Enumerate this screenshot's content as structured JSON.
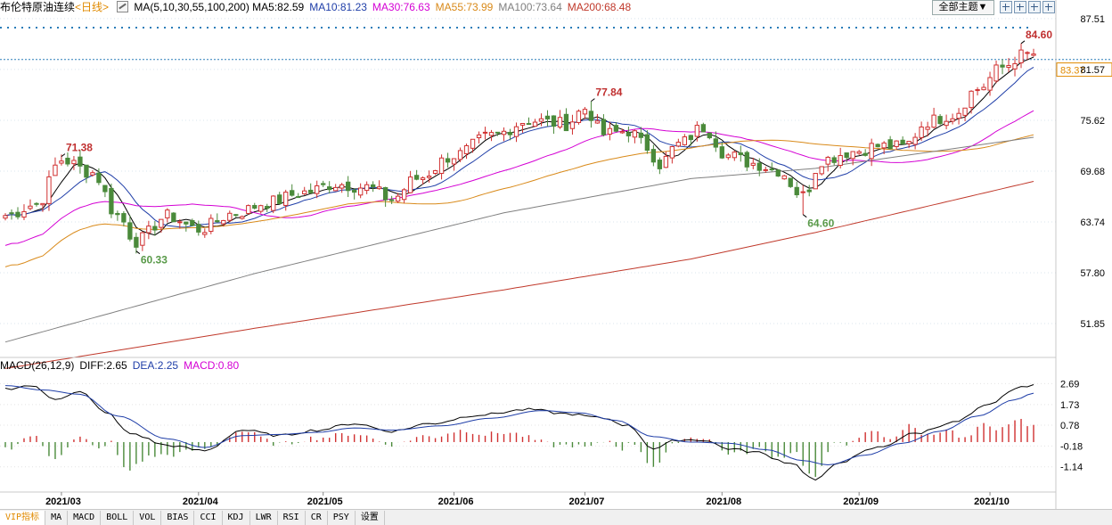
{
  "header": {
    "instrument": "布伦特原油连续",
    "period": "<日线>",
    "indicator": "MA(5,10,30,55,100,200)",
    "ma_values": [
      {
        "label": "MA5:82.59",
        "color": "#000000"
      },
      {
        "label": "MA10:81.23",
        "color": "#1f3ea8"
      },
      {
        "label": "MA30:76.63",
        "color": "#d400d4"
      },
      {
        "label": "MA55:73.99",
        "color": "#d98a1a"
      },
      {
        "label": "MA100:73.64",
        "color": "#808080"
      },
      {
        "label": "MA200:68.48",
        "color": "#c0392b"
      }
    ],
    "theme_button": "全部主题▼",
    "tool_icons": [
      "zoom-in-icon",
      "zoom-out-icon",
      "left-arrow-icon",
      "right-arrow-icon",
      "expand-icon"
    ]
  },
  "macd_header": {
    "title": "MACD(26,12,9)",
    "diff": "DIFF:2.65",
    "dea": "DEA:2.25",
    "macd": "MACD:0.80"
  },
  "colors": {
    "up": "#d03030",
    "down": "#4a8a3a",
    "grid": "#2a7db8",
    "last_price_box": "#e08a00"
  },
  "bottom_tabs": [
    {
      "label": "VIP指标",
      "active": true
    },
    {
      "label": "MA",
      "active": false
    },
    {
      "label": "MACD",
      "active": false
    },
    {
      "label": "BOLL",
      "active": false
    },
    {
      "label": "VOL",
      "active": false
    },
    {
      "label": "BIAS",
      "active": false
    },
    {
      "label": "CCI",
      "active": false
    },
    {
      "label": "KDJ",
      "active": false
    },
    {
      "label": "LWR",
      "active": false
    },
    {
      "label": "RSI",
      "active": false
    },
    {
      "label": "CR",
      "active": false
    },
    {
      "label": "PSY",
      "active": false
    },
    {
      "label": "设置",
      "active": false
    }
  ],
  "chart_data": [
    {
      "type": "candlestick",
      "title": "",
      "ylim": [
        48.0,
        87.6
      ],
      "yticks": [
        "87.51",
        "81.57",
        "75.62",
        "69.68",
        "63.74",
        "57.80",
        "51.85"
      ],
      "ytick_values": [
        87.51,
        81.57,
        75.62,
        69.68,
        63.74,
        57.8,
        51.85
      ],
      "x_labels": [
        {
          "label": "2021/03",
          "index": 9
        },
        {
          "label": "2021/04",
          "index": 31
        },
        {
          "label": "2021/05",
          "index": 51
        },
        {
          "label": "2021/06",
          "index": 72
        },
        {
          "label": "2021/07",
          "index": 93
        },
        {
          "label": "2021/08",
          "index": 115
        },
        {
          "label": "2021/09",
          "index": 137
        },
        {
          "label": "2021/10",
          "index": 158
        }
      ],
      "annotations": [
        {
          "text": "71.38",
          "index": 9,
          "value": 71.38,
          "type": "high"
        },
        {
          "text": "60.33",
          "index": 21,
          "value": 60.33,
          "type": "low"
        },
        {
          "text": "77.84",
          "index": 94,
          "value": 77.84,
          "type": "high"
        },
        {
          "text": "64.60",
          "index": 128,
          "value": 64.6,
          "type": "low"
        },
        {
          "text": "84.60",
          "index": 163,
          "value": 84.6,
          "type": "high"
        }
      ],
      "last_price": {
        "text": "83.37",
        "value": 83.37
      },
      "prev_high_line": 84.6,
      "dotted_line": 86.5,
      "anchor_points": [
        [
          0,
          64.5
        ],
        [
          5,
          65.8
        ],
        [
          9,
          71.0
        ],
        [
          14,
          69.5
        ],
        [
          18,
          64.5
        ],
        [
          21,
          61.5
        ],
        [
          26,
          64.4
        ],
        [
          31,
          62.9
        ],
        [
          37,
          64.8
        ],
        [
          42,
          66.0
        ],
        [
          48,
          67.2
        ],
        [
          53,
          68.2
        ],
        [
          58,
          67.8
        ],
        [
          62,
          66.4
        ],
        [
          66,
          68.8
        ],
        [
          72,
          71.5
        ],
        [
          78,
          73.8
        ],
        [
          84,
          75.6
        ],
        [
          90,
          75.2
        ],
        [
          93,
          77.0
        ],
        [
          96,
          74.0
        ],
        [
          100,
          74.4
        ],
        [
          103,
          72.5
        ],
        [
          105,
          70.5
        ],
        [
          108,
          72.8
        ],
        [
          112,
          74.8
        ],
        [
          116,
          71.5
        ],
        [
          120,
          70.6
        ],
        [
          124,
          69.8
        ],
        [
          128,
          66.8
        ],
        [
          131,
          71.0
        ],
        [
          136,
          72.0
        ],
        [
          140,
          72.6
        ],
        [
          144,
          72.5
        ],
        [
          148,
          75.5
        ],
        [
          152,
          76.3
        ],
        [
          156,
          79.3
        ],
        [
          160,
          81.8
        ],
        [
          163,
          83.2
        ],
        [
          165,
          83.37
        ]
      ],
      "ma_lines": [
        {
          "name": "MA5",
          "color": "#000000",
          "window": 5
        },
        {
          "name": "MA10",
          "color": "#1f3ea8",
          "window": 10
        },
        {
          "name": "MA30",
          "color": "#d400d4",
          "window": 30
        },
        {
          "name": "MA55",
          "color": "#d98a1a",
          "window": 55
        },
        {
          "name": "MA100",
          "color": "#808080",
          "anchors": [
            [
              0,
              49.7
            ],
            [
              40,
              57.7
            ],
            [
              80,
              64.8
            ],
            [
              110,
              68.8
            ],
            [
              130,
              70.0
            ],
            [
              165,
              73.64
            ]
          ]
        },
        {
          "name": "MA200",
          "color": "#c0392b",
          "anchors": [
            [
              0,
              46.6
            ],
            [
              40,
              51.3
            ],
            [
              80,
              55.8
            ],
            [
              110,
              59.4
            ],
            [
              130,
              62.5
            ],
            [
              165,
              68.48
            ]
          ]
        }
      ]
    },
    {
      "type": "macd",
      "ylim": [
        -2.3,
        3.2
      ],
      "yticks": [
        "2.69",
        "1.73",
        "0.78",
        "-0.18",
        "-1.14"
      ],
      "ytick_values": [
        2.69,
        1.73,
        0.78,
        -0.18,
        -1.14
      ],
      "diff_anchors": [
        [
          0,
          2.45
        ],
        [
          4,
          2.6
        ],
        [
          8,
          2.0
        ],
        [
          12,
          2.3
        ],
        [
          16,
          1.4
        ],
        [
          20,
          0.4
        ],
        [
          26,
          -0.15
        ],
        [
          32,
          -0.4
        ],
        [
          38,
          0.55
        ],
        [
          44,
          0.3
        ],
        [
          50,
          0.55
        ],
        [
          56,
          0.85
        ],
        [
          62,
          0.5
        ],
        [
          68,
          0.85
        ],
        [
          76,
          1.25
        ],
        [
          84,
          1.5
        ],
        [
          90,
          1.3
        ],
        [
          96,
          1.1
        ],
        [
          100,
          0.75
        ],
        [
          104,
          -0.3
        ],
        [
          108,
          0.1
        ],
        [
          112,
          0.1
        ],
        [
          116,
          -0.3
        ],
        [
          120,
          -0.45
        ],
        [
          126,
          -0.95
        ],
        [
          130,
          -1.75
        ],
        [
          134,
          -0.9
        ],
        [
          140,
          -0.25
        ],
        [
          146,
          0.4
        ],
        [
          152,
          0.9
        ],
        [
          158,
          1.7
        ],
        [
          162,
          2.45
        ],
        [
          165,
          2.65
        ]
      ],
      "dea_anchors": [
        [
          0,
          2.6
        ],
        [
          6,
          2.4
        ],
        [
          12,
          2.2
        ],
        [
          18,
          1.2
        ],
        [
          26,
          0.15
        ],
        [
          32,
          -0.25
        ],
        [
          38,
          0.3
        ],
        [
          44,
          0.35
        ],
        [
          50,
          0.45
        ],
        [
          56,
          0.65
        ],
        [
          62,
          0.55
        ],
        [
          70,
          0.75
        ],
        [
          78,
          1.1
        ],
        [
          86,
          1.45
        ],
        [
          92,
          1.35
        ],
        [
          98,
          1.0
        ],
        [
          104,
          0.25
        ],
        [
          110,
          0.0
        ],
        [
          116,
          -0.05
        ],
        [
          122,
          -0.35
        ],
        [
          128,
          -0.85
        ],
        [
          132,
          -1.05
        ],
        [
          138,
          -0.6
        ],
        [
          144,
          -0.05
        ],
        [
          150,
          0.5
        ],
        [
          156,
          1.2
        ],
        [
          162,
          1.95
        ],
        [
          165,
          2.25
        ]
      ]
    }
  ]
}
